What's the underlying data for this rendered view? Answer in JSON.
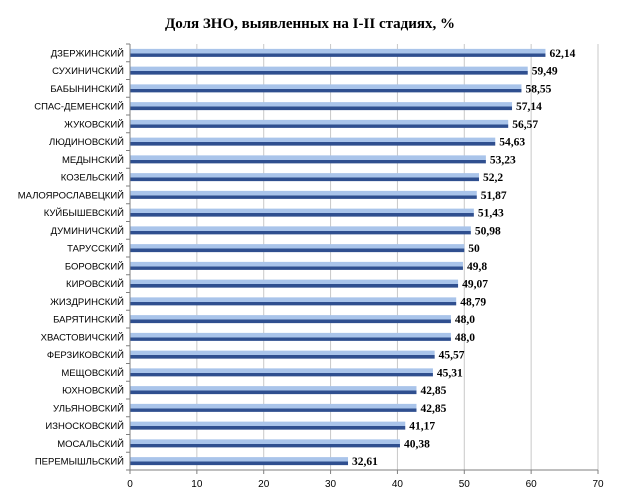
{
  "chart_data": {
    "type": "bar",
    "orientation": "horizontal",
    "title": "Доля  ЗНО, выявленных на I-II стадиях, %",
    "categories": [
      "ДЗЕРЖИНСКИЙ",
      "СУХИНИЧСКИЙ",
      "БАБЫНИНСКИЙ",
      "СПАС-ДЕМЕНСКИЙ",
      "ЖУКОВСКИЙ",
      "ЛЮДИНОВСКИЙ",
      "МЕДЫНСКИЙ",
      "КОЗЕЛЬСКИЙ",
      "МАЛОЯРОСЛАВЕЦКИЙ",
      "КУЙБЫШЕВСКИЙ",
      "ДУМИНИЧСКИЙ",
      "ТАРУССКИЙ",
      "БОРОВСКИЙ",
      "КИРОВСКИЙ",
      "ЖИЗДРИНСКИЙ",
      "БАРЯТИНСКИЙ",
      "ХВАСТОВИЧСКИЙ",
      "ФЕРЗИКОВСКИЙ",
      "МЕЩОВСКИЙ",
      "ЮХНОВСКИЙ",
      "УЛЬЯНОВСКИЙ",
      "ИЗНОСКОВСКИЙ",
      "МОСАЛЬСКИЙ",
      "ПЕРЕМЫШЛЬСКИЙ"
    ],
    "values": [
      62.14,
      59.49,
      58.55,
      57.14,
      56.57,
      54.63,
      53.23,
      52.2,
      51.87,
      51.43,
      50.98,
      50,
      49.8,
      49.07,
      48.79,
      48.0,
      48.0,
      45.57,
      45.31,
      42.85,
      42.85,
      41.17,
      40.38,
      32.61
    ],
    "value_labels": [
      "62,14",
      "59,49",
      "58,55",
      "57,14",
      "56,57",
      "54,63",
      "53,23",
      "52,2",
      "51,87",
      "51,43",
      "50,98",
      "50",
      "49,8",
      "49,07",
      "48,79",
      "48,0",
      "48,0",
      "45,57",
      "45,31",
      "42,85",
      "42,85",
      "41,17",
      "40,38",
      "32,61"
    ],
    "xlim": [
      0,
      70
    ],
    "x_ticks": [
      "0",
      "10",
      "20",
      "30",
      "40",
      "50",
      "60",
      "70"
    ],
    "grid": "vertical",
    "legend": "none",
    "colors": {
      "bar_light": "#a9c4ea",
      "bar_dark": "#2f4f8f",
      "grid": "#c8c8c8",
      "axis": "#7f7f7f"
    }
  }
}
